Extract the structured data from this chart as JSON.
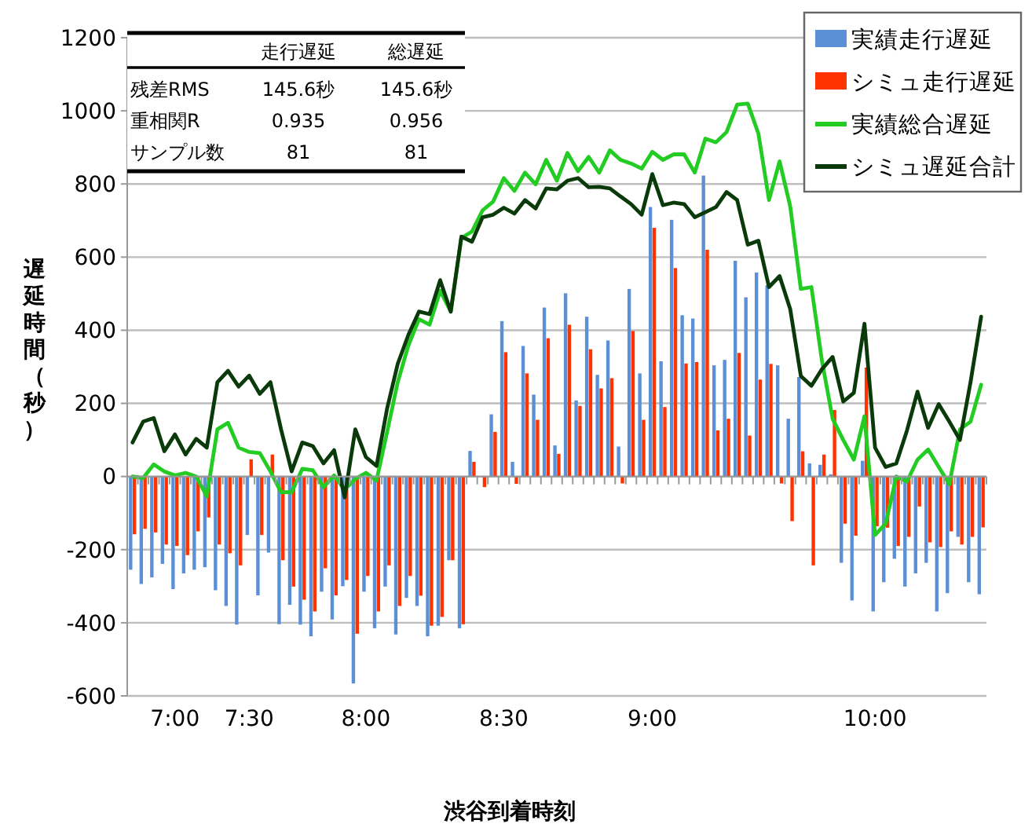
{
  "chart_data": {
    "type": "bar",
    "xlabel": "渋谷到着時刻",
    "ylabel": "遅延時間（秒）",
    "categories": [
      null,
      null,
      null,
      null,
      "7:00",
      null,
      null,
      null,
      null,
      null,
      null,
      "7:30",
      null,
      null,
      null,
      null,
      null,
      null,
      null,
      null,
      null,
      null,
      "8:00",
      null,
      null,
      null,
      null,
      null,
      null,
      null,
      null,
      null,
      null,
      null,
      null,
      "8:30",
      null,
      null,
      null,
      null,
      null,
      null,
      null,
      null,
      null,
      null,
      null,
      null,
      null,
      "9:00",
      null,
      null,
      null,
      null,
      null,
      null,
      null,
      null,
      null,
      null,
      null,
      null,
      null,
      null,
      null,
      null,
      null,
      null,
      null,
      null,
      "10:00",
      null,
      null,
      null,
      null,
      null,
      null,
      null,
      null,
      null,
      null
    ],
    "series": [
      {
        "name": "実績走行遅延",
        "color": "#5b8fd6",
        "values": [
          -255,
          -294,
          -276,
          -239,
          -308,
          -265,
          -255,
          -248,
          -311,
          -354,
          -405,
          -160,
          -325,
          -208,
          -404,
          -351,
          -405,
          -437,
          -315,
          -391,
          -300,
          -566,
          -315,
          -415,
          -301,
          -432,
          -332,
          -354,
          -437,
          -408,
          -229,
          -415,
          70,
          null,
          170,
          425,
          40,
          357,
          224,
          462,
          85,
          501,
          208,
          437,
          278,
          372,
          82,
          513,
          282,
          737,
          315,
          702,
          441,
          432,
          823,
          304,
          319,
          590,
          490,
          558,
          523,
          304,
          158,
          272,
          36,
          32,
          6,
          -236,
          -339,
          43,
          -369,
          -289,
          -225,
          -301,
          -265,
          -236,
          -369,
          -319,
          -165,
          -289,
          -322
        ]
      },
      {
        "name": "シミュ走行遅延",
        "color": "#ff3300",
        "values": [
          -158,
          -143,
          -153,
          -186,
          -190,
          -215,
          -150,
          -112,
          -186,
          -210,
          -243,
          47,
          -160,
          60,
          -229,
          -301,
          -337,
          -369,
          -251,
          -325,
          -283,
          -430,
          -272,
          -369,
          -243,
          -354,
          -272,
          -326,
          -408,
          -384,
          -229,
          -404,
          40,
          -29,
          122,
          340,
          -20,
          282,
          155,
          378,
          62,
          415,
          193,
          348,
          241,
          269,
          -19,
          398,
          155,
          680,
          190,
          570,
          309,
          313,
          620,
          126,
          158,
          338,
          112,
          265,
          308,
          -19,
          -122,
          69,
          -243,
          60,
          182,
          -129,
          -162,
          298,
          -136,
          -140,
          -190,
          -165,
          -82,
          -180,
          -193,
          -150,
          -186,
          -165,
          -139
        ]
      },
      {
        "name": "実績総合遅延",
        "type": "line",
        "color": "#22cc22",
        "values": [
          0,
          -4,
          33,
          14,
          3,
          10,
          0,
          -54,
          129,
          147,
          79,
          67,
          64,
          14,
          -43,
          -43,
          21,
          17,
          -29,
          3,
          -36,
          -7,
          10,
          -11,
          122,
          258,
          358,
          430,
          415,
          508,
          451,
          652,
          670,
          728,
          752,
          816,
          781,
          831,
          799,
          866,
          809,
          885,
          835,
          874,
          831,
          892,
          866,
          856,
          842,
          888,
          866,
          881,
          881,
          831,
          924,
          914,
          942,
          1017,
          1020,
          938,
          756,
          862,
          739,
          513,
          518,
          315,
          158,
          100,
          46,
          165,
          -160,
          -129,
          0,
          -14,
          46,
          74,
          26,
          -21,
          129,
          150,
          251
        ]
      },
      {
        "name": "シミュ遅延合計",
        "type": "line",
        "color": "#0a3a0a",
        "values": [
          93,
          150,
          160,
          69,
          115,
          60,
          103,
          79,
          258,
          289,
          246,
          276,
          226,
          258,
          129,
          14,
          93,
          83,
          36,
          72,
          -57,
          129,
          53,
          29,
          186,
          308,
          387,
          451,
          444,
          537,
          451,
          656,
          642,
          709,
          716,
          735,
          719,
          756,
          733,
          788,
          785,
          809,
          816,
          791,
          792,
          788,
          766,
          745,
          716,
          827,
          742,
          749,
          745,
          709,
          723,
          737,
          778,
          756,
          634,
          645,
          518,
          548,
          458,
          275,
          248,
          294,
          327,
          205,
          229,
          418,
          79,
          26,
          36,
          125,
          232,
          133,
          198,
          150,
          100,
          258,
          437
        ]
      }
    ],
    "ylim": [
      -600,
      1200
    ],
    "yticks": [
      -600,
      -400,
      -200,
      0,
      200,
      400,
      600,
      800,
      1000,
      1200
    ],
    "grid": "y",
    "legend": "top right",
    "marker": "none",
    "line_style": "solid",
    "annotations": [
      "走行遅延",
      "総遅延",
      "残差RMS",
      "145.6秒",
      "145.6秒",
      "重相関R",
      "0.935",
      "0.956",
      "サンプル数",
      "81",
      "81"
    ]
  }
}
